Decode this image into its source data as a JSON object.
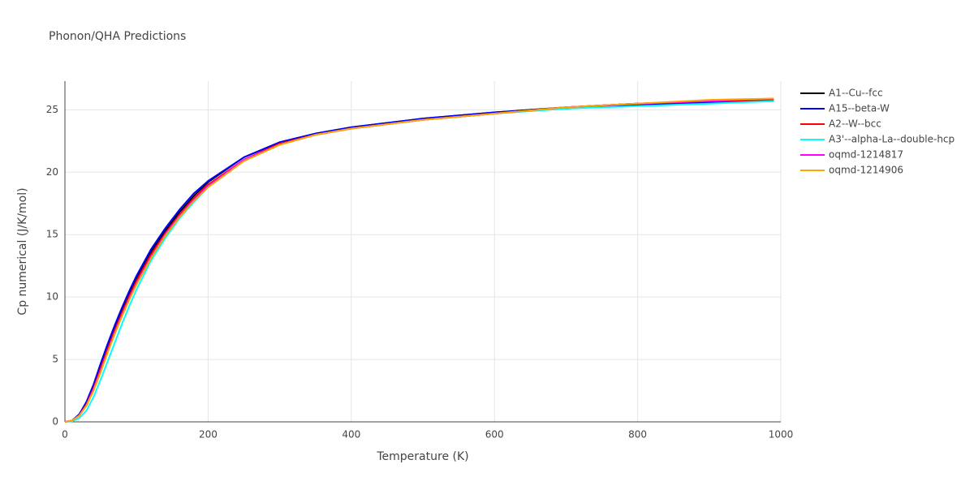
{
  "chart_data": {
    "type": "line",
    "title": "Phonon/QHA Predictions",
    "x_label": "Temperature (K)",
    "y_label": "Cp numerical (J/K/mol)",
    "x": [
      0,
      10,
      20,
      30,
      40,
      50,
      60,
      70,
      80,
      90,
      100,
      120,
      140,
      160,
      180,
      200,
      250,
      300,
      350,
      400,
      500,
      600,
      700,
      800,
      900,
      990
    ],
    "series": [
      {
        "name": "A1--Cu--fcc",
        "color": "#000000",
        "values": [
          0,
          0.1,
          0.6,
          1.5,
          2.9,
          4.5,
          6.1,
          7.6,
          9.0,
          10.3,
          11.5,
          13.6,
          15.3,
          16.8,
          18.1,
          19.2,
          21.2,
          22.4,
          23.1,
          23.6,
          24.3,
          24.8,
          25.2,
          25.5,
          25.7,
          25.8
        ]
      },
      {
        "name": "A15--beta-W",
        "color": "#0000ff",
        "values": [
          0,
          0.1,
          0.6,
          1.6,
          3.0,
          4.7,
          6.3,
          7.8,
          9.2,
          10.5,
          11.7,
          13.8,
          15.5,
          17.0,
          18.3,
          19.3,
          21.2,
          22.4,
          23.1,
          23.6,
          24.3,
          24.8,
          25.1,
          25.4,
          25.6,
          25.7
        ]
      },
      {
        "name": "A2--W--bcc",
        "color": "#ff0000",
        "values": [
          0,
          0.1,
          0.5,
          1.4,
          2.7,
          4.3,
          5.9,
          7.4,
          8.8,
          10.1,
          11.3,
          13.4,
          15.1,
          16.6,
          17.9,
          19.0,
          21.0,
          22.3,
          23.0,
          23.5,
          24.2,
          24.7,
          25.2,
          25.5,
          25.7,
          25.8
        ]
      },
      {
        "name": "A3'--alpha-La--double-hcp",
        "color": "#00ffff",
        "values": [
          0,
          0.05,
          0.3,
          0.9,
          2.0,
          3.4,
          4.9,
          6.4,
          7.9,
          9.3,
          10.6,
          12.9,
          14.7,
          16.3,
          17.6,
          18.8,
          20.9,
          22.2,
          23.0,
          23.5,
          24.2,
          24.7,
          25.1,
          25.3,
          25.5,
          25.7
        ]
      },
      {
        "name": "oqmd-1214817",
        "color": "#ff00ff",
        "values": [
          0,
          0.1,
          0.5,
          1.3,
          2.6,
          4.1,
          5.7,
          7.2,
          8.6,
          9.9,
          11.1,
          13.2,
          15.0,
          16.5,
          17.8,
          18.9,
          21.0,
          22.2,
          23.0,
          23.5,
          24.2,
          24.7,
          25.2,
          25.5,
          25.7,
          25.9
        ]
      },
      {
        "name": "oqmd-1214906",
        "color": "#ffa500",
        "values": [
          0,
          0.1,
          0.5,
          1.3,
          2.5,
          4.0,
          5.6,
          7.1,
          8.5,
          9.8,
          11.0,
          13.1,
          14.9,
          16.4,
          17.7,
          18.8,
          20.9,
          22.2,
          23.0,
          23.5,
          24.2,
          24.7,
          25.2,
          25.5,
          25.8,
          25.9
        ]
      }
    ],
    "xlim": [
      0,
      1000
    ],
    "xticks": [
      0,
      200,
      400,
      600,
      800,
      1000
    ],
    "ylim": [
      0,
      27.3
    ],
    "yticks": [
      0,
      5,
      10,
      15,
      20,
      25
    ],
    "grid": true
  }
}
